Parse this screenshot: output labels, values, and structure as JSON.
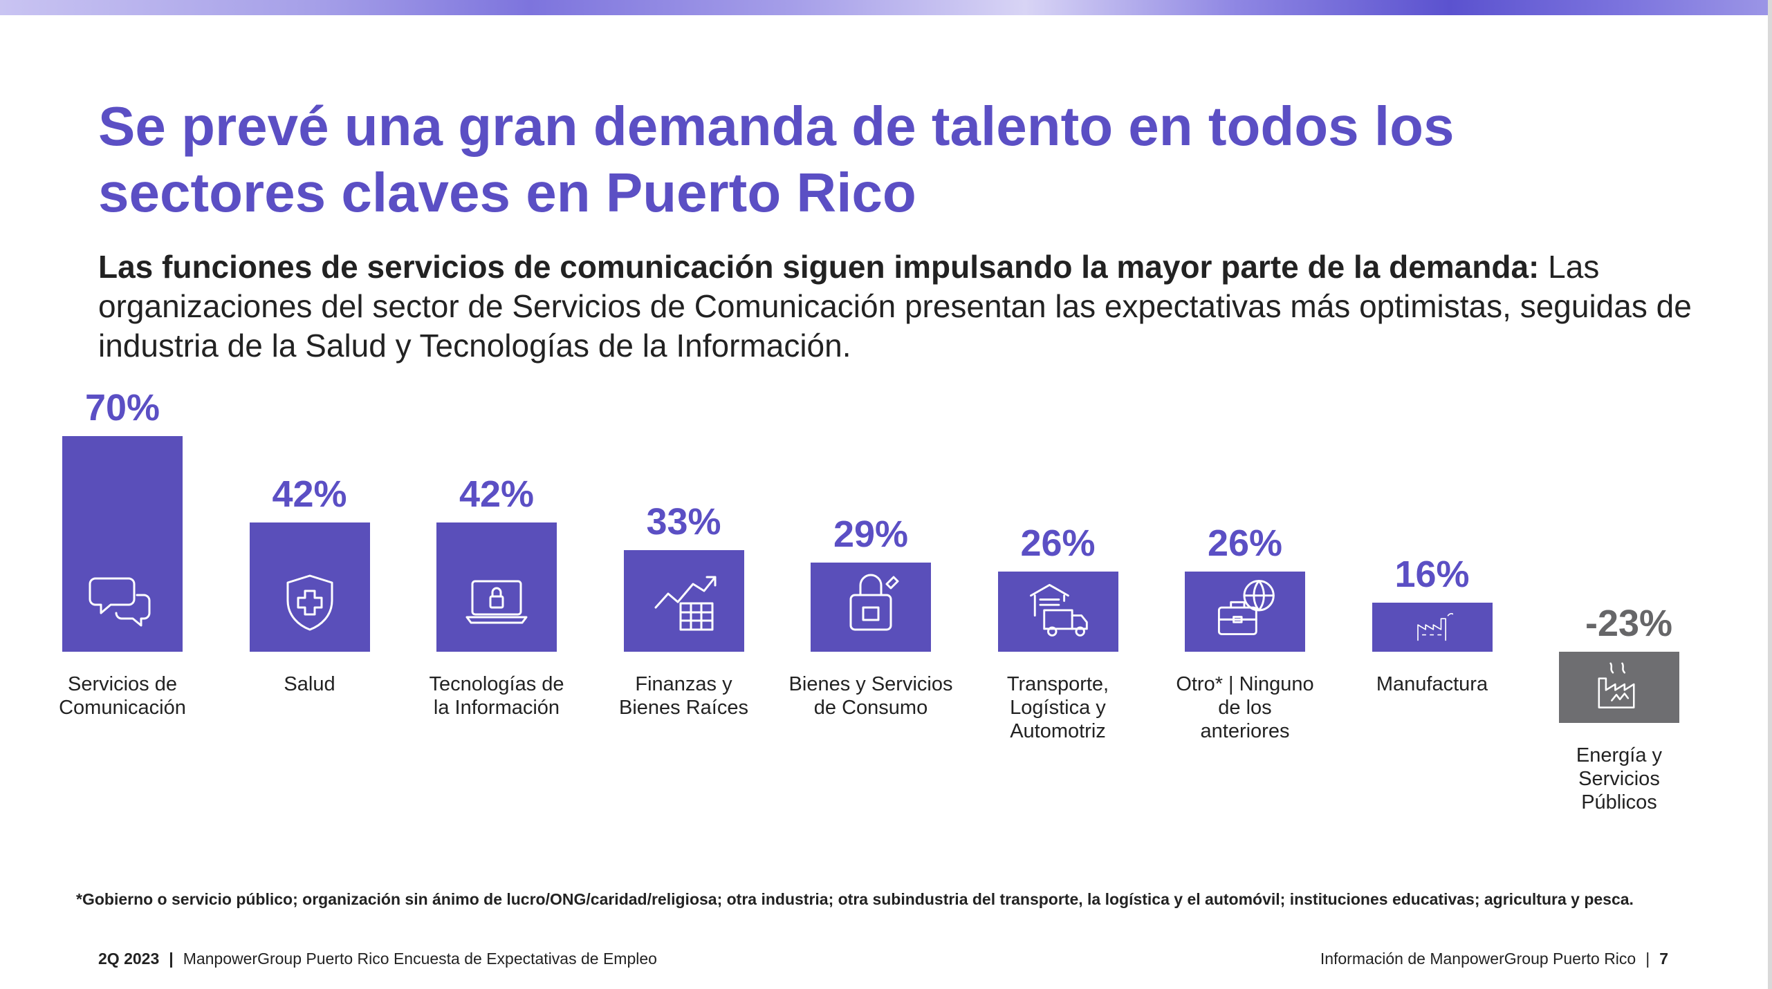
{
  "title": "Se prevé una gran demanda de talento en todos los sectores claves en Puerto Rico",
  "subtitle_lead": "Las funciones de servicios de comunicación siguen impulsando la mayor parte de la demanda:",
  "subtitle_rest": " Las organizaciones del sector de Servicios de Comunicación presentan las expectativas más optimistas, seguidas de industria de la Salud y Tecnologías de la Información.",
  "chart_data": {
    "type": "bar",
    "title": "",
    "xlabel": "",
    "ylabel": "",
    "categories": [
      "Servicios de Comunicación",
      "Salud",
      "Tecnologías de la Información",
      "Finanzas y Bienes Raíces",
      "Bienes y Servicios de Consumo",
      "Transporte, Logística y Automotriz",
      "Otro* | Ninguno de los anteriores",
      "Manufactura",
      "Energía y Servicios Públicos"
    ],
    "category_lines": [
      [
        "Servicios de",
        "Comunicación"
      ],
      [
        "Salud"
      ],
      [
        "Tecnologías de",
        "la Información"
      ],
      [
        "Finanzas y",
        "Bienes Raíces"
      ],
      [
        "Bienes y Servicios",
        "de Consumo"
      ],
      [
        "Transporte,",
        "Logística y",
        "Automotriz"
      ],
      [
        "Otro* | Ninguno",
        "de los",
        "anteriores"
      ],
      [
        "Manufactura"
      ],
      [
        "Energía y",
        "Servicios",
        "Públicos"
      ]
    ],
    "values": [
      70,
      42,
      42,
      33,
      29,
      26,
      26,
      16,
      -23
    ],
    "value_labels": [
      "70%",
      "42%",
      "42%",
      "33%",
      "29%",
      "26%",
      "26%",
      "16%",
      "-23%"
    ],
    "icons": [
      "chat-icon",
      "health-shield-icon",
      "laptop-lock-icon",
      "finance-growth-icon",
      "shopping-bag-icon",
      "delivery-truck-icon",
      "globe-briefcase-icon",
      "factory-icon",
      "energy-factory-icon"
    ],
    "colors": {
      "positive": "#5a4fba",
      "negative": "#6e6e71",
      "label_positive": "#5b4fc4",
      "label_negative": "#666668"
    },
    "unit": "%",
    "grid": false,
    "legend": "none"
  },
  "footnote": "*Gobierno o servicio público; organización sin ánimo de lucro/ONG/caridad/religiosa; otra industria; otra subindustria del transporte, la logística y el automóvil; instituciones educativas; agricultura y pesca.",
  "footer": {
    "quarter": "2Q 2023",
    "survey": "ManpowerGroup Puerto Rico Encuesta de Expectativas de Empleo",
    "info": "Información de ManpowerGroup Puerto Rico",
    "page": "7"
  }
}
